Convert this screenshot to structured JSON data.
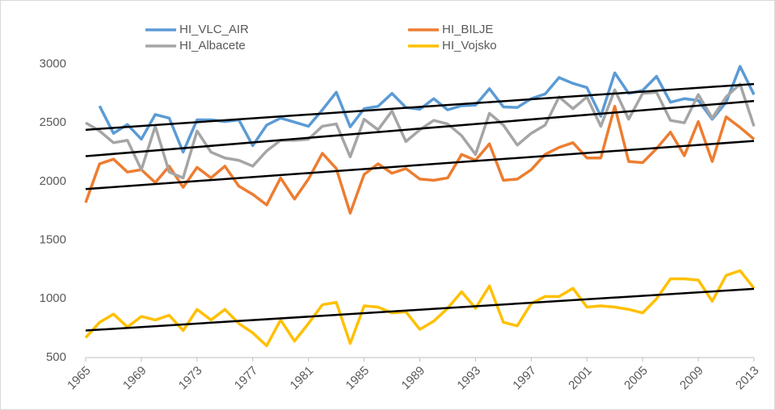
{
  "chart_data": {
    "type": "line",
    "x": [
      1965,
      1966,
      1967,
      1968,
      1969,
      1970,
      1971,
      1972,
      1973,
      1974,
      1975,
      1976,
      1977,
      1978,
      1979,
      1980,
      1981,
      1982,
      1983,
      1984,
      1985,
      1986,
      1987,
      1988,
      1989,
      1990,
      1991,
      1992,
      1993,
      1994,
      1995,
      1996,
      1997,
      1998,
      1999,
      2000,
      2001,
      2002,
      2003,
      2004,
      2005,
      2006,
      2007,
      2008,
      2009,
      2010,
      2011,
      2012,
      2013
    ],
    "xlim": [
      1965,
      2013
    ],
    "xticks": [
      1965,
      1969,
      1973,
      1977,
      1981,
      1985,
      1989,
      1993,
      1997,
      2001,
      2005,
      2009,
      2013
    ],
    "ylim": [
      500,
      3250
    ],
    "yticks": [
      500,
      1000,
      1500,
      2000,
      2500,
      3000
    ],
    "legend": "top",
    "series": [
      {
        "name": "HI_VLC_AIR",
        "color": "#5b9bd5",
        "trend": [
          2440,
          2830
        ],
        "values": [
          null,
          2643,
          2410,
          2485,
          2360,
          2570,
          2540,
          2250,
          2525,
          2525,
          2510,
          2525,
          2305,
          2480,
          2540,
          2505,
          2470,
          2610,
          2760,
          2465,
          2620,
          2640,
          2750,
          2630,
          2615,
          2705,
          2610,
          2645,
          2650,
          2790,
          2635,
          2630,
          2705,
          2745,
          2885,
          2835,
          2800,
          2555,
          2925,
          2750,
          2775,
          2895,
          2675,
          2705,
          2690,
          2530,
          2675,
          2980,
          2740
        ]
      },
      {
        "name": "HI_BILJE",
        "color": "#ed7d31",
        "trend": [
          1935,
          2345
        ],
        "values": [
          1820,
          2150,
          2190,
          2080,
          2100,
          1990,
          2130,
          1950,
          2120,
          2030,
          2130,
          1960,
          1890,
          1800,
          2030,
          1850,
          2020,
          2240,
          2110,
          1730,
          2060,
          2150,
          2070,
          2110,
          2020,
          2010,
          2030,
          2230,
          2180,
          2320,
          2010,
          2020,
          2100,
          2230,
          2290,
          2330,
          2200,
          2200,
          2640,
          2170,
          2160,
          2280,
          2420,
          2220,
          2510,
          2170,
          2550,
          2460,
          2360
        ]
      },
      {
        "name": "HI_Albacete",
        "color": "#a5a5a5",
        "trend": [
          2215,
          2685
        ],
        "values": [
          2500,
          2430,
          2330,
          2350,
          2100,
          2470,
          2080,
          2030,
          2430,
          2250,
          2200,
          2180,
          2130,
          2260,
          2350,
          2350,
          2360,
          2470,
          2490,
          2210,
          2530,
          2440,
          2600,
          2340,
          2440,
          2520,
          2490,
          2390,
          2230,
          2580,
          2480,
          2310,
          2410,
          2480,
          2720,
          2620,
          2720,
          2470,
          2780,
          2530,
          2750,
          2760,
          2520,
          2500,
          2740,
          2540,
          2720,
          2830,
          2470
        ]
      },
      {
        "name": "HI_Vojsko",
        "color": "#ffc000",
        "trend": [
          730,
          1085
        ],
        "values": [
          670,
          800,
          870,
          760,
          850,
          820,
          860,
          730,
          910,
          820,
          910,
          790,
          710,
          600,
          820,
          640,
          790,
          950,
          970,
          620,
          940,
          930,
          880,
          890,
          740,
          810,
          920,
          1060,
          920,
          1110,
          800,
          770,
          960,
          1020,
          1020,
          1090,
          930,
          940,
          930,
          910,
          880,
          1000,
          1170,
          1170,
          1160,
          980,
          1200,
          1240,
          1090
        ]
      }
    ]
  }
}
